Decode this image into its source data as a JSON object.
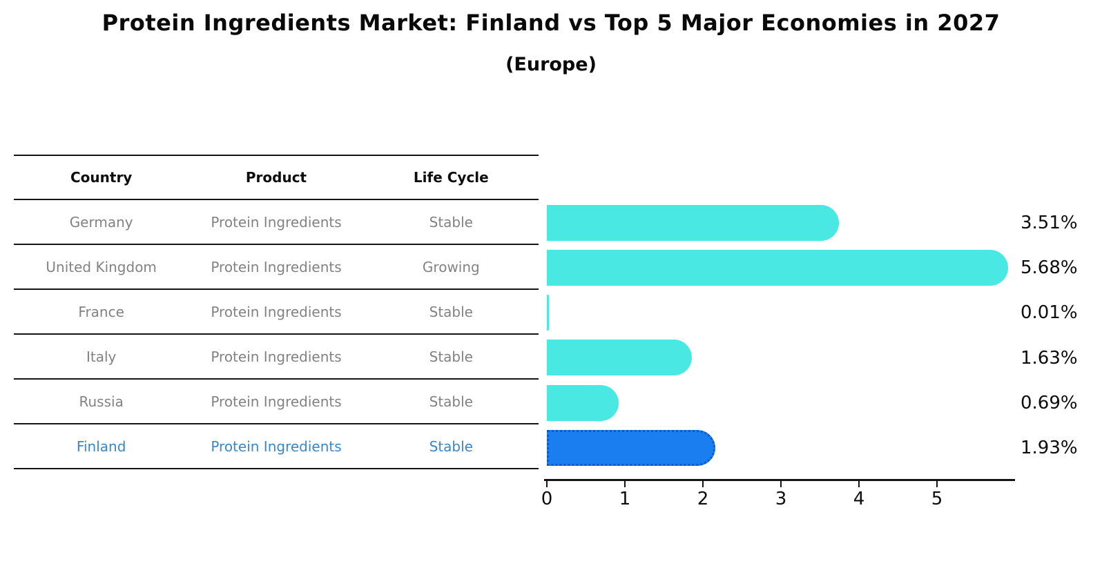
{
  "title": "Protein Ingredients Market: Finland vs Top 5 Major Economies in 2027",
  "subtitle": "(Europe)",
  "table": {
    "headers": [
      "Country",
      "Product",
      "Life Cycle"
    ],
    "rows": [
      {
        "country": "Germany",
        "product": "Protein Ingredients",
        "life_cycle": "Stable",
        "highlight": false
      },
      {
        "country": "United Kingdom",
        "product": "Protein Ingredients",
        "life_cycle": "Growing",
        "highlight": false
      },
      {
        "country": "France",
        "product": "Protein Ingredients",
        "life_cycle": "Stable",
        "highlight": false
      },
      {
        "country": "Italy",
        "product": "Protein Ingredients",
        "life_cycle": "Stable",
        "highlight": false
      },
      {
        "country": "Russia",
        "product": "Protein Ingredients",
        "life_cycle": "Stable",
        "highlight": false
      },
      {
        "country": "Finland",
        "product": "Protein Ingredients",
        "life_cycle": "Stable",
        "highlight": true
      }
    ]
  },
  "chart_data": {
    "type": "bar",
    "orientation": "horizontal",
    "categories": [
      "Germany",
      "United Kingdom",
      "France",
      "Italy",
      "Russia",
      "Finland"
    ],
    "values": [
      3.51,
      5.68,
      0.01,
      1.63,
      0.69,
      1.93
    ],
    "value_labels": [
      "3.51%",
      "5.68%",
      "0.01%",
      "1.63%",
      "0.69%",
      "1.93%"
    ],
    "x_ticks": [
      0,
      1,
      2,
      3,
      4,
      5
    ],
    "xlim": [
      0,
      6
    ],
    "grid": false,
    "legend": null,
    "bar_color": "#4AE8E2",
    "highlight_index": 5,
    "highlight_color": "#1B7EF0",
    "highlight_border_color": "#1057C8",
    "highlight_text_color": "#3A87C8"
  }
}
